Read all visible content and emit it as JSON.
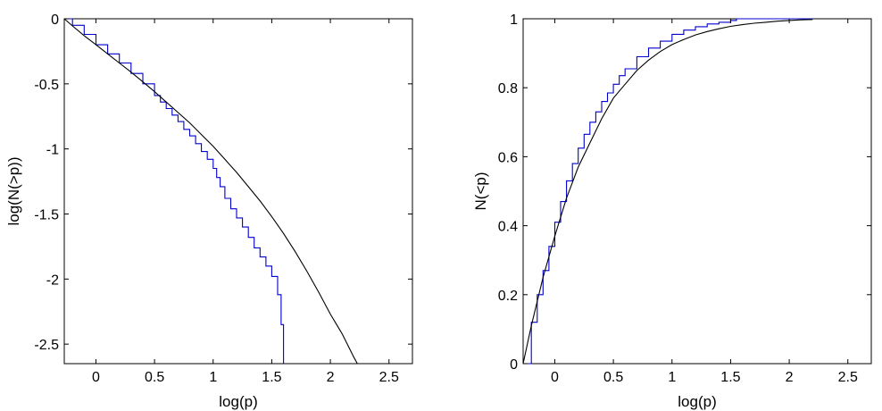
{
  "colors": {
    "empirical": "#0000cc",
    "model": "#000000",
    "axes": "#000000",
    "background": "#ffffff"
  },
  "chart_data": [
    {
      "type": "line",
      "xlabel": "log(p)",
      "ylabel": "log(N(>p))",
      "xlim": [
        -0.27,
        2.7
      ],
      "ylim": [
        -2.65,
        0
      ],
      "xticks": [
        0,
        0.5,
        1,
        1.5,
        2,
        2.5
      ],
      "xtick_labels": [
        "0",
        "0.5",
        "1",
        "1.5",
        "2",
        "2.5"
      ],
      "yticks": [
        0,
        -0.5,
        -1,
        -1.5,
        -2,
        -2.5
      ],
      "ytick_labels": [
        "0",
        "-0.5",
        "-1",
        "-1.5",
        "-2",
        "-2.5"
      ],
      "grid": false,
      "series": [
        {
          "style": "step",
          "color": "#0000cc",
          "x": [
            -0.27,
            -0.2,
            -0.1,
            0,
            0.1,
            0.2,
            0.3,
            0.4,
            0.5,
            0.55,
            0.6,
            0.65,
            0.7,
            0.75,
            0.8,
            0.85,
            0.9,
            0.95,
            1.0,
            1.03,
            1.06,
            1.1,
            1.15,
            1.2,
            1.25,
            1.3,
            1.35,
            1.4,
            1.45,
            1.5,
            1.55,
            1.58,
            1.6
          ],
          "y": [
            0,
            -0.05,
            -0.12,
            -0.2,
            -0.27,
            -0.34,
            -0.42,
            -0.5,
            -0.59,
            -0.64,
            -0.69,
            -0.74,
            -0.79,
            -0.85,
            -0.9,
            -0.96,
            -1.02,
            -1.08,
            -1.15,
            -1.22,
            -1.29,
            -1.38,
            -1.46,
            -1.53,
            -1.6,
            -1.68,
            -1.76,
            -1.83,
            -1.9,
            -1.98,
            -2.12,
            -2.35,
            -2.65
          ]
        },
        {
          "style": "line",
          "color": "#000000",
          "x": [
            -0.27,
            -0.2,
            -0.1,
            0,
            0.1,
            0.2,
            0.3,
            0.4,
            0.5,
            0.6,
            0.7,
            0.8,
            0.9,
            1.0,
            1.1,
            1.2,
            1.3,
            1.4,
            1.5,
            1.6,
            1.7,
            1.8,
            1.9,
            2.0,
            2.1,
            2.2,
            2.23
          ],
          "y": [
            0,
            -0.055,
            -0.13,
            -0.2,
            -0.27,
            -0.34,
            -0.41,
            -0.485,
            -0.56,
            -0.64,
            -0.72,
            -0.8,
            -0.89,
            -0.98,
            -1.08,
            -1.18,
            -1.29,
            -1.4,
            -1.52,
            -1.65,
            -1.79,
            -1.94,
            -2.1,
            -2.27,
            -2.42,
            -2.6,
            -2.65
          ]
        }
      ]
    },
    {
      "type": "line",
      "xlabel": "log(p)",
      "ylabel": "N(<p)",
      "xlim": [
        -0.27,
        2.7
      ],
      "ylim": [
        0,
        1
      ],
      "xticks": [
        0,
        0.5,
        1,
        1.5,
        2,
        2.5
      ],
      "xtick_labels": [
        "0",
        "0.5",
        "1",
        "1.5",
        "2",
        "2.5"
      ],
      "yticks": [
        0,
        0.2,
        0.4,
        0.6,
        0.8,
        1
      ],
      "ytick_labels": [
        "0",
        "0.2",
        "0.4",
        "0.6",
        "0.8",
        "1"
      ],
      "grid": false,
      "series": [
        {
          "style": "step",
          "color": "#0000cc",
          "x": [
            -0.27,
            -0.2,
            -0.15,
            -0.1,
            -0.05,
            0,
            0.05,
            0.1,
            0.15,
            0.2,
            0.25,
            0.3,
            0.35,
            0.4,
            0.45,
            0.5,
            0.55,
            0.6,
            0.7,
            0.8,
            0.9,
            1.0,
            1.1,
            1.2,
            1.3,
            1.4,
            1.5,
            1.55,
            1.6,
            2.2
          ],
          "y": [
            0,
            0.12,
            0.2,
            0.27,
            0.34,
            0.41,
            0.47,
            0.53,
            0.58,
            0.625,
            0.665,
            0.7,
            0.73,
            0.76,
            0.785,
            0.81,
            0.835,
            0.855,
            0.89,
            0.915,
            0.935,
            0.955,
            0.967,
            0.977,
            0.985,
            0.99,
            0.995,
            1.0,
            1.0,
            1.0
          ]
        },
        {
          "style": "line",
          "color": "#000000",
          "x": [
            -0.27,
            -0.2,
            -0.1,
            0,
            0.1,
            0.2,
            0.3,
            0.4,
            0.5,
            0.6,
            0.7,
            0.8,
            0.9,
            1.0,
            1.1,
            1.2,
            1.3,
            1.4,
            1.5,
            1.6,
            1.7,
            1.8,
            1.9,
            2.0,
            2.1,
            2.2
          ],
          "y": [
            0,
            0.11,
            0.25,
            0.37,
            0.48,
            0.57,
            0.64,
            0.71,
            0.77,
            0.81,
            0.85,
            0.88,
            0.905,
            0.925,
            0.94,
            0.953,
            0.963,
            0.971,
            0.978,
            0.983,
            0.987,
            0.99,
            0.993,
            0.995,
            0.997,
            0.998
          ]
        }
      ]
    }
  ]
}
